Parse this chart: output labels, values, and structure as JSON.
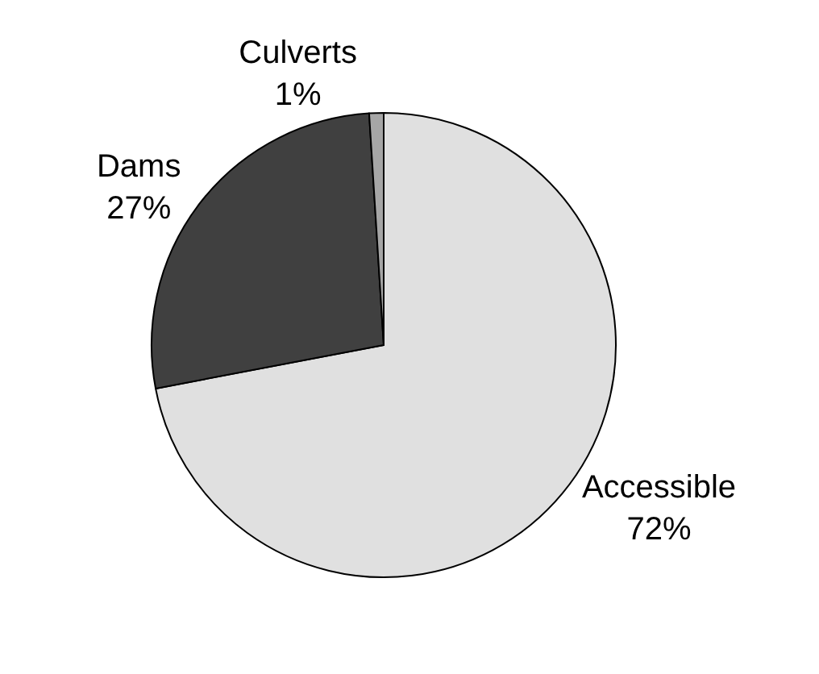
{
  "chart_data": {
    "type": "pie",
    "categories": [
      "Accessible",
      "Dams",
      "Culverts"
    ],
    "values": [
      72,
      27,
      1
    ],
    "value_labels": [
      "72%",
      "27%",
      "1%"
    ],
    "colors": [
      "#e0e0e0",
      "#404040",
      "#a6a6a6"
    ],
    "legend": false
  }
}
